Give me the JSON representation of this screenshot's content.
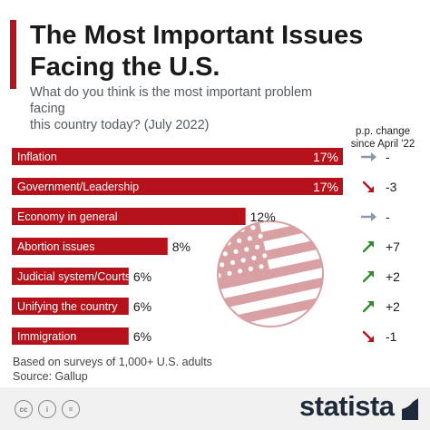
{
  "header": {
    "title_line1": "The Most Important Issues",
    "title_line2": "Facing the U.S.",
    "subtitle_line1": "What do you think is the most important problem facing",
    "subtitle_line2": "this country today? (July 2022)"
  },
  "change_header": {
    "line1": "p.p. change",
    "line2": "since April '22"
  },
  "colors": {
    "bar": "#b5121b",
    "accent": "#b5121b",
    "arrow_up": "#2e8b2e",
    "arrow_down": "#b5121b",
    "arrow_flat": "#8a9aaa",
    "flag_light": "#d9a0a4"
  },
  "chart_data": {
    "type": "bar",
    "orientation": "horizontal",
    "categories": [
      "Inflation",
      "Government/Leadership",
      "Economy in general",
      "Abortion issues",
      "Judicial system/Courts",
      "Unifying the country",
      "Immigration"
    ],
    "values": [
      17,
      17,
      12,
      8,
      6,
      6,
      6
    ],
    "value_labels": [
      "17%",
      "17%",
      "12%",
      "8%",
      "6%",
      "6%",
      "6%"
    ],
    "unit": "%",
    "changes": [
      {
        "direction": "flat",
        "icon": "arrow-right-icon",
        "label": "-"
      },
      {
        "direction": "down",
        "icon": "arrow-down-right-icon",
        "label": "-3"
      },
      {
        "direction": "flat",
        "icon": "arrow-right-icon",
        "label": "-"
      },
      {
        "direction": "up",
        "icon": "arrow-up-right-icon",
        "label": "+7"
      },
      {
        "direction": "up",
        "icon": "arrow-up-right-icon",
        "label": "+2"
      },
      {
        "direction": "up",
        "icon": "arrow-up-right-icon",
        "label": "+2"
      },
      {
        "direction": "down",
        "icon": "arrow-down-right-icon",
        "label": "-1"
      }
    ],
    "xlim": [
      0,
      17
    ],
    "grid": false,
    "legend": "none"
  },
  "footer": {
    "note": "Based on surveys of 1,000+ U.S. adults",
    "source": "Source: Gallup",
    "license_icons": [
      "cc-icon",
      "attribution-icon",
      "no-derivatives-icon"
    ],
    "brand": "statista"
  }
}
